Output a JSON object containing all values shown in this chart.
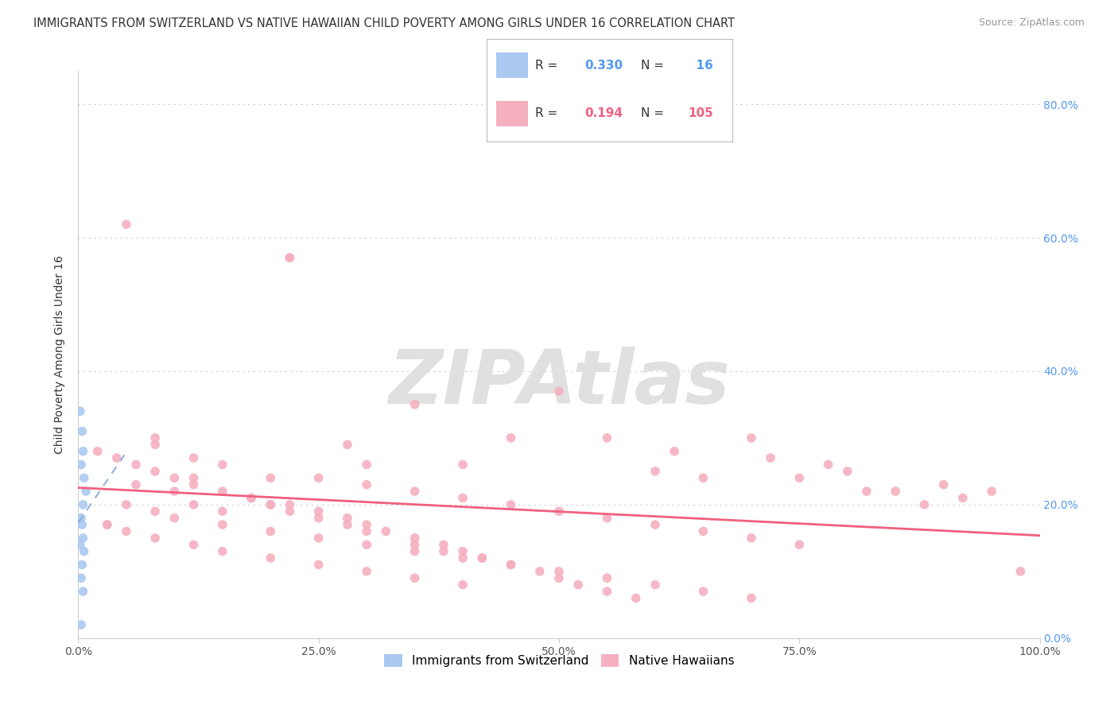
{
  "title": "IMMIGRANTS FROM SWITZERLAND VS NATIVE HAWAIIAN CHILD POVERTY AMONG GIRLS UNDER 16 CORRELATION CHART",
  "source": "Source: ZipAtlas.com",
  "ylabel": "Child Poverty Among Girls Under 16",
  "r_blue": 0.33,
  "n_blue": 16,
  "r_pink": 0.194,
  "n_pink": 105,
  "blue_color": "#aac9f0",
  "pink_color": "#f5b0c0",
  "blue_line_color": "#88aadd",
  "pink_line_color": "#f06080",
  "legend_blue_label": "Immigrants from Switzerland",
  "legend_pink_label": "Native Hawaiians",
  "blue_x": [
    0.2,
    0.4,
    0.5,
    0.3,
    0.6,
    0.8,
    0.5,
    0.3,
    0.4,
    0.5,
    0.2,
    0.6,
    0.4,
    0.3,
    0.5,
    0.3
  ],
  "blue_y": [
    34,
    31,
    28,
    26,
    24,
    22,
    20,
    18,
    17,
    15,
    14,
    13,
    11,
    9,
    7,
    2
  ],
  "pink_x": [
    5,
    8,
    18,
    22,
    12,
    30,
    28,
    35,
    40,
    45,
    50,
    55,
    60,
    62,
    65,
    70,
    72,
    75,
    78,
    80,
    82,
    85,
    88,
    90,
    92,
    95,
    98,
    3,
    6,
    10,
    12,
    15,
    18,
    20,
    22,
    25,
    28,
    30,
    32,
    35,
    38,
    40,
    42,
    45,
    48,
    50,
    52,
    55,
    58,
    8,
    12,
    15,
    20,
    25,
    30,
    35,
    40,
    45,
    50,
    55,
    60,
    65,
    70,
    75,
    5,
    8,
    10,
    15,
    20,
    25,
    30,
    35,
    40,
    45,
    50,
    55,
    60,
    65,
    70,
    3,
    5,
    8,
    12,
    15,
    20,
    25,
    30,
    35,
    40,
    2,
    4,
    6,
    8,
    10,
    12,
    15,
    18,
    20,
    22,
    25,
    28,
    30,
    35,
    38,
    42
  ],
  "pink_y": [
    62,
    29,
    29,
    57,
    24,
    26,
    29,
    35,
    26,
    30,
    37,
    30,
    25,
    28,
    24,
    30,
    27,
    24,
    26,
    25,
    22,
    22,
    20,
    23,
    21,
    22,
    10,
    17,
    23,
    22,
    20,
    19,
    21,
    20,
    20,
    19,
    18,
    17,
    16,
    15,
    14,
    13,
    12,
    11,
    10,
    9,
    8,
    7,
    6,
    30,
    27,
    26,
    24,
    24,
    23,
    22,
    21,
    20,
    19,
    18,
    17,
    16,
    15,
    14,
    20,
    19,
    18,
    17,
    16,
    15,
    14,
    13,
    12,
    11,
    10,
    9,
    8,
    7,
    6,
    17,
    16,
    15,
    14,
    13,
    12,
    11,
    10,
    9,
    8,
    28,
    27,
    26,
    25,
    24,
    23,
    22,
    21,
    20,
    19,
    18,
    17,
    16,
    14,
    13,
    12
  ],
  "xlim": [
    0,
    100
  ],
  "ylim": [
    0,
    85
  ],
  "yticks": [
    0,
    20,
    40,
    60,
    80
  ],
  "xticks": [
    0,
    25,
    50,
    75,
    100
  ],
  "grid_color": "#cccccc",
  "background_color": "#ffffff",
  "watermark": "ZIPAtlas",
  "watermark_color": "#e0e0e0",
  "title_fontsize": 10.5,
  "source_fontsize": 9,
  "axis_label_fontsize": 10,
  "tick_fontsize": 10
}
